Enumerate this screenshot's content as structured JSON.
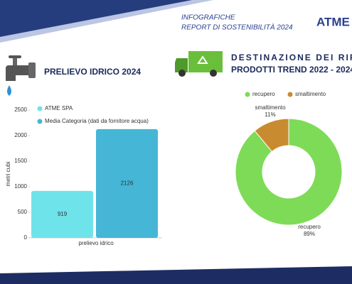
{
  "header": {
    "line1": "INFOGRAFICHE",
    "line2": "REPORT DI SOSTENIBILITÀ 2024",
    "logo": "ATME"
  },
  "chart_data": [
    {
      "type": "bar",
      "title": "PRELIEVO IDRICO 2024",
      "categories": [
        "prelievo idrico"
      ],
      "series": [
        {
          "name": "ATME SPA",
          "color": "#6fe3ea",
          "values": [
            919
          ]
        },
        {
          "name": "Media Categoria (dati da fornitore acqua)",
          "color": "#45b6d6",
          "values": [
            2126
          ]
        }
      ],
      "ylabel": "metri cubi",
      "ylim": [
        0,
        2500
      ],
      "yticks": [
        0,
        500,
        1000,
        1500,
        2000,
        2500
      ],
      "grid": false
    },
    {
      "type": "pie",
      "title": [
        "DESTINAZIONE DEI RIFIUTI",
        "PRODOTTI TREND 2022 - 2024"
      ],
      "categories": [
        "recupero",
        "smaltimento"
      ],
      "values": [
        89,
        11
      ],
      "value_labels": [
        "89%",
        "11%"
      ],
      "colors": [
        "#7edb57",
        "#c98b2f"
      ],
      "donut": true,
      "legend": "top"
    }
  ]
}
